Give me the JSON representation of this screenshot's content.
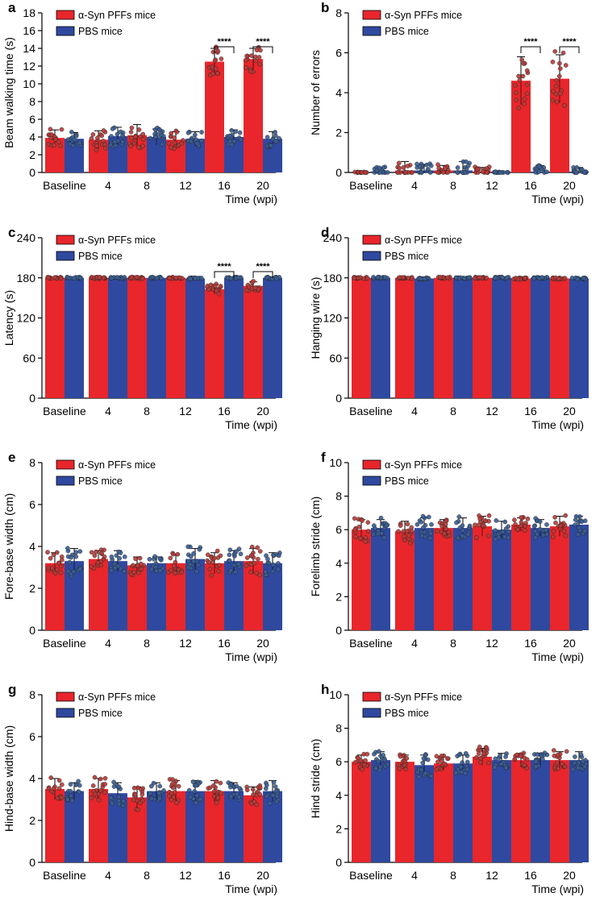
{
  "figure": {
    "colors": {
      "pffs": "#e8262b",
      "pbs": "#2f49a0",
      "pffs_dot": "#b83a37",
      "pbs_dot": "#3a5f95"
    },
    "legend": {
      "series1": "α-Syn PFFs mice",
      "series2": "PBS mice"
    },
    "categories": [
      "Baseline",
      "4",
      "8",
      "12",
      "16",
      "20"
    ],
    "time_label": "Time (wpi)",
    "significance": "****"
  },
  "chart_data": [
    {
      "panel": "a",
      "type": "bar",
      "ylabel": "Beam walking time (s)",
      "ylim": [
        0,
        18
      ],
      "yticks": [
        0,
        2,
        4,
        6,
        8,
        10,
        12,
        14,
        16,
        18
      ],
      "categories": [
        "Baseline",
        "4",
        "8",
        "12",
        "16",
        "20"
      ],
      "series": [
        {
          "name": "α-Syn PFFs mice",
          "values": [
            3.9,
            3.7,
            4.2,
            3.7,
            12.5,
            12.8
          ],
          "errors": [
            0.9,
            1.0,
            1.2,
            0.9,
            1.5,
            1.2
          ]
        },
        {
          "name": "PBS mice",
          "values": [
            3.8,
            4.1,
            4.0,
            3.8,
            4.0,
            3.8
          ],
          "errors": [
            0.7,
            1.0,
            0.9,
            0.8,
            0.8,
            0.8
          ]
        }
      ],
      "significant_at": [
        "16",
        "20"
      ],
      "xlabel": "Time (wpi)"
    },
    {
      "panel": "b",
      "type": "bar",
      "ylabel": "Number of errors",
      "ylim": [
        0,
        8
      ],
      "yticks": [
        0,
        2,
        4,
        6,
        8
      ],
      "categories": [
        "Baseline",
        "4",
        "8",
        "12",
        "16",
        "20"
      ],
      "series": [
        {
          "name": "α-Syn PFFs mice",
          "values": [
            0,
            0.1,
            0.1,
            0.05,
            4.6,
            4.7
          ],
          "errors": [
            0,
            0.45,
            0.25,
            0.2,
            1.2,
            1.2
          ]
        },
        {
          "name": "PBS mice",
          "values": [
            0.05,
            0.1,
            0.1,
            0,
            0.05,
            0.05
          ],
          "errors": [
            0.2,
            0.3,
            0.45,
            0,
            0.3,
            0.2
          ]
        }
      ],
      "significant_at": [
        "16",
        "20"
      ],
      "xlabel": "Time (wpi)"
    },
    {
      "panel": "c",
      "type": "bar",
      "ylabel": "Latency (s)",
      "ylim": [
        0,
        240
      ],
      "yticks": [
        0,
        60,
        120,
        180,
        240
      ],
      "categories": [
        "Baseline",
        "4",
        "8",
        "12",
        "16",
        "20"
      ],
      "series": [
        {
          "name": "α-Syn PFFs mice",
          "values": [
            180,
            180,
            180,
            180,
            163,
            168
          ],
          "errors": [
            0,
            0,
            0,
            0,
            7,
            6
          ]
        },
        {
          "name": "PBS mice",
          "values": [
            180,
            180,
            180,
            179,
            180,
            180
          ],
          "errors": [
            0,
            0,
            0,
            1,
            0,
            0
          ]
        }
      ],
      "significant_at": [
        "16",
        "20"
      ],
      "xlabel": "Time (wpi)"
    },
    {
      "panel": "d",
      "type": "bar",
      "ylabel": "Hanging wire (s)",
      "ylim": [
        0,
        240
      ],
      "yticks": [
        0,
        60,
        120,
        180,
        240
      ],
      "categories": [
        "Baseline",
        "4",
        "8",
        "12",
        "16",
        "20"
      ],
      "series": [
        {
          "name": "α-Syn PFFs mice",
          "values": [
            180,
            180,
            180,
            180,
            179,
            179
          ],
          "errors": [
            0,
            0,
            0,
            0,
            1,
            1
          ]
        },
        {
          "name": "PBS mice",
          "values": [
            180,
            179,
            180,
            180,
            180,
            179
          ],
          "errors": [
            0,
            1,
            0,
            0,
            0,
            1
          ]
        }
      ],
      "significant_at": [],
      "xlabel": "Time (wpi)"
    },
    {
      "panel": "e",
      "type": "bar",
      "ylabel": "Fore-base width (cm)",
      "ylim": [
        0,
        8
      ],
      "yticks": [
        0,
        2,
        4,
        6,
        8
      ],
      "categories": [
        "Baseline",
        "4",
        "8",
        "12",
        "16",
        "20"
      ],
      "series": [
        {
          "name": "α-Syn PFFs mice",
          "values": [
            3.2,
            3.4,
            3.1,
            3.2,
            3.2,
            3.3
          ],
          "errors": [
            0.5,
            0.4,
            0.4,
            0.4,
            0.5,
            0.6
          ]
        },
        {
          "name": "PBS mice",
          "values": [
            3.3,
            3.3,
            3.2,
            3.4,
            3.3,
            3.2
          ],
          "errors": [
            0.6,
            0.5,
            0.3,
            0.5,
            0.5,
            0.5
          ]
        }
      ],
      "significant_at": [],
      "xlabel": "Time (wpi)"
    },
    {
      "panel": "f",
      "type": "bar",
      "ylabel": "Forelimb stride (cm)",
      "ylim": [
        0,
        10
      ],
      "yticks": [
        0,
        2,
        4,
        6,
        8,
        10
      ],
      "categories": [
        "Baseline",
        "4",
        "8",
        "12",
        "16",
        "20"
      ],
      "series": [
        {
          "name": "α-Syn PFFs mice",
          "values": [
            6.0,
            5.9,
            6.1,
            6.2,
            6.3,
            6.2
          ],
          "errors": [
            0.6,
            0.6,
            0.5,
            0.6,
            0.4,
            0.6
          ]
        },
        {
          "name": "PBS mice",
          "values": [
            6.1,
            6.1,
            6.1,
            6.0,
            6.1,
            6.3
          ],
          "errors": [
            0.5,
            0.6,
            0.6,
            0.5,
            0.5,
            0.5
          ]
        }
      ],
      "significant_at": [],
      "xlabel": "Time (wpi)"
    },
    {
      "panel": "g",
      "type": "bar",
      "ylabel": "Hind-base width (cm)",
      "ylim": [
        0,
        8
      ],
      "yticks": [
        0,
        2,
        4,
        6,
        8
      ],
      "categories": [
        "Baseline",
        "4",
        "8",
        "12",
        "16",
        "20"
      ],
      "series": [
        {
          "name": "α-Syn PFFs mice",
          "values": [
            3.5,
            3.5,
            3.1,
            3.4,
            3.4,
            3.2
          ],
          "errors": [
            0.5,
            0.5,
            0.5,
            0.5,
            0.5,
            0.4
          ]
        },
        {
          "name": "PBS mice",
          "values": [
            3.4,
            3.3,
            3.4,
            3.4,
            3.4,
            3.4
          ],
          "errors": [
            0.4,
            0.5,
            0.4,
            0.5,
            0.4,
            0.5
          ]
        }
      ],
      "significant_at": [],
      "xlabel": "Time (wpi)"
    },
    {
      "panel": "h",
      "type": "bar",
      "ylabel": "Hind stride (cm)",
      "ylim": [
        0,
        10
      ],
      "yticks": [
        0,
        2,
        4,
        6,
        8,
        10
      ],
      "categories": [
        "Baseline",
        "4",
        "8",
        "12",
        "16",
        "20"
      ],
      "series": [
        {
          "name": "α-Syn PFFs mice",
          "values": [
            6.0,
            6.0,
            5.9,
            6.3,
            6.1,
            6.1
          ],
          "errors": [
            0.4,
            0.4,
            0.4,
            0.5,
            0.4,
            0.5
          ]
        },
        {
          "name": "PBS mice",
          "values": [
            6.1,
            5.8,
            5.9,
            6.1,
            6.1,
            6.1
          ],
          "errors": [
            0.5,
            0.6,
            0.5,
            0.4,
            0.4,
            0.5
          ]
        }
      ],
      "significant_at": [],
      "xlabel": "Time (wpi)"
    }
  ]
}
